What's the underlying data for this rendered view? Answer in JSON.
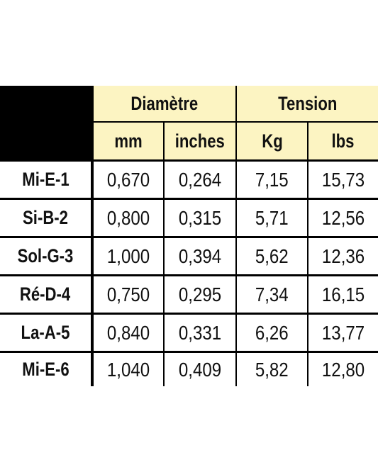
{
  "header": {
    "group_diameter": "Diamètre",
    "group_tension": "Tension",
    "units": [
      "mm",
      "inches",
      "Kg",
      "lbs"
    ]
  },
  "rows": [
    {
      "label": "Mi-E-1",
      "values": [
        "0,670",
        "0,264",
        "7,15",
        "15,73"
      ]
    },
    {
      "label": "Si-B-2",
      "values": [
        "0,800",
        "0,315",
        "5,71",
        "12,56"
      ]
    },
    {
      "label": "Sol-G-3",
      "values": [
        "1,000",
        "0,394",
        "5,62",
        "12,36"
      ]
    },
    {
      "label": "Ré-D-4",
      "values": [
        "0,750",
        "0,295",
        "7,34",
        "16,15"
      ]
    },
    {
      "label": "La-A-5",
      "values": [
        "0,840",
        "0,331",
        "6,26",
        "13,77"
      ]
    },
    {
      "label": "Mi-E-6",
      "values": [
        "1,040",
        "0,409",
        "5,82",
        "12,80"
      ]
    }
  ]
}
